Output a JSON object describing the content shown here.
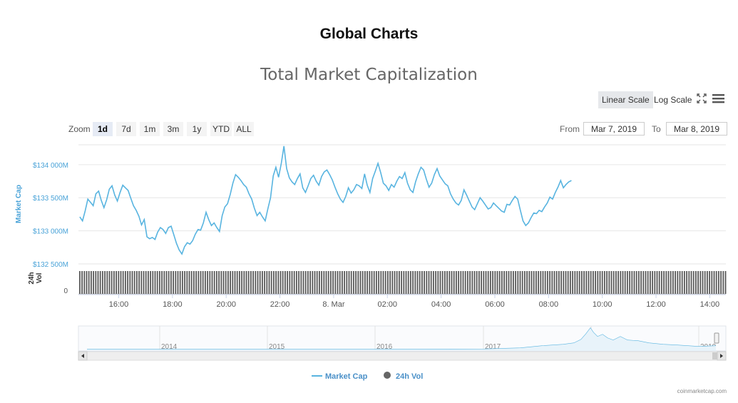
{
  "page": {
    "title": "Global Charts",
    "credit": "coinmarketcap.com"
  },
  "toolbar": {
    "linear_label": "Linear Scale",
    "log_label": "Log Scale",
    "zoom_label": "Zoom",
    "zoom_options": [
      "1d",
      "7d",
      "1m",
      "3m",
      "1y",
      "YTD",
      "ALL"
    ],
    "zoom_selected": "1d",
    "from_label": "From",
    "from_value": "Mar 7, 2019",
    "to_label": "To",
    "to_value": "Mar 8, 2019"
  },
  "colors": {
    "line": "#58b4e0",
    "volume": "#5a5a5a",
    "axis_text": "#4aa3d8",
    "grid": "#e6e6e6"
  },
  "chart_data": {
    "type": "line",
    "title": "Total Market Capitalization",
    "ylabel": "Market Cap",
    "vol_label": "24h Vol",
    "vol_zero_label": "0",
    "yticks": [
      132500,
      133000,
      133500,
      134000
    ],
    "ytick_labels": [
      "$132 500M",
      "$133 000M",
      "$133 500M",
      "$134 000M"
    ],
    "ylim": [
      132500,
      134300
    ],
    "xlim_hours": [
      14.5,
      38.6
    ],
    "xticks": [
      {
        "h": 16,
        "label": "16:00"
      },
      {
        "h": 18,
        "label": "18:00"
      },
      {
        "h": 20,
        "label": "20:00"
      },
      {
        "h": 22,
        "label": "22:00"
      },
      {
        "h": 24,
        "label": "8. Mar"
      },
      {
        "h": 26,
        "label": "02:00"
      },
      {
        "h": 28,
        "label": "04:00"
      },
      {
        "h": 30,
        "label": "06:00"
      },
      {
        "h": 32,
        "label": "08:00"
      },
      {
        "h": 34,
        "label": "10:00"
      },
      {
        "h": 36,
        "label": "12:00"
      },
      {
        "h": 38,
        "label": "14:00"
      }
    ],
    "series": [
      {
        "name": "Market Cap",
        "x_hours_start": 14.55,
        "x_hours_step": 0.1,
        "values": [
          133210,
          133150,
          133300,
          133480,
          133430,
          133380,
          133560,
          133600,
          133460,
          133350,
          133470,
          133630,
          133680,
          133540,
          133450,
          133580,
          133690,
          133650,
          133610,
          133490,
          133380,
          133310,
          133220,
          133090,
          133170,
          132910,
          132880,
          132900,
          132870,
          132980,
          133050,
          133020,
          132960,
          133050,
          133070,
          132940,
          132810,
          132710,
          132650,
          132760,
          132820,
          132800,
          132850,
          132950,
          133020,
          133010,
          133120,
          133280,
          133170,
          133080,
          133120,
          133050,
          132990,
          133230,
          133360,
          133410,
          133550,
          133720,
          133850,
          133810,
          133760,
          133700,
          133660,
          133560,
          133480,
          133340,
          133230,
          133280,
          133210,
          133150,
          133330,
          133500,
          133830,
          133960,
          133810,
          134020,
          134280,
          133940,
          133800,
          133740,
          133700,
          133790,
          133860,
          133650,
          133580,
          133680,
          133790,
          133840,
          133750,
          133690,
          133820,
          133890,
          133920,
          133850,
          133770,
          133660,
          133560,
          133480,
          133430,
          133520,
          133650,
          133570,
          133620,
          133700,
          133680,
          133640,
          133860,
          133690,
          133580,
          133790,
          133900,
          134020,
          133880,
          133720,
          133680,
          133610,
          133700,
          133660,
          133750,
          133820,
          133790,
          133880,
          133720,
          133620,
          133580,
          133740,
          133860,
          133960,
          133920,
          133780,
          133660,
          133720,
          133850,
          133940,
          133830,
          133770,
          133710,
          133680,
          133560,
          133480,
          133420,
          133390,
          133460,
          133620,
          133540,
          133450,
          133360,
          133320,
          133410,
          133500,
          133450,
          133390,
          133330,
          133350,
          133420,
          133380,
          133340,
          133300,
          133280,
          133400,
          133390,
          133460,
          133520,
          133480,
          133310,
          133150,
          133080,
          133120,
          133200,
          133270,
          133260,
          133310,
          133290,
          133360,
          133420,
          133510,
          133480,
          133580,
          133660,
          133760,
          133650,
          133700,
          133740,
          133760
        ]
      },
      {
        "name": "24h Vol"
      }
    ],
    "navigator": {
      "years": [
        "2014",
        "2015",
        "2016",
        "2017",
        "2018",
        "2019"
      ]
    }
  }
}
